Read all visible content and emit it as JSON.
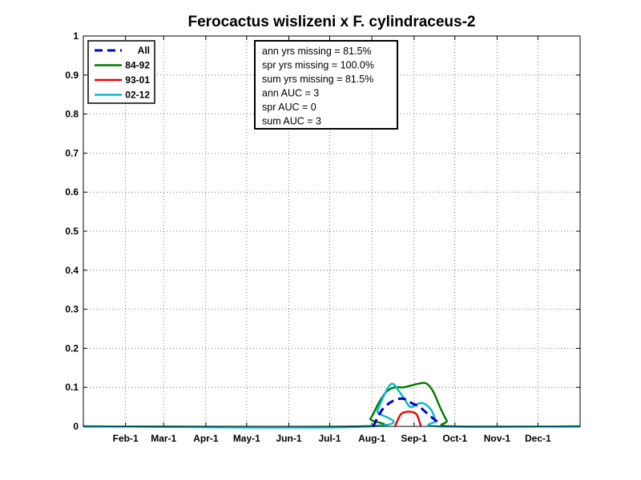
{
  "chart_data": {
    "type": "line",
    "title": "Ferocactus wislizeni x F. cylindraceus-2",
    "xlabel": "",
    "ylabel": "",
    "x_unit": "day_of_year",
    "xlim": [
      1,
      366
    ],
    "ylim": [
      0,
      1
    ],
    "grid": true,
    "legend_position": "top-left",
    "x_ticks": [
      {
        "value": 32,
        "label": "Feb-1"
      },
      {
        "value": 60,
        "label": "Mar-1"
      },
      {
        "value": 91,
        "label": "Apr-1"
      },
      {
        "value": 121,
        "label": "May-1"
      },
      {
        "value": 152,
        "label": "Jun-1"
      },
      {
        "value": 182,
        "label": "Jul-1"
      },
      {
        "value": 213,
        "label": "Aug-1"
      },
      {
        "value": 244,
        "label": "Sep-1"
      },
      {
        "value": 274,
        "label": "Oct-1"
      },
      {
        "value": 305,
        "label": "Nov-1"
      },
      {
        "value": 335,
        "label": "Dec-1"
      }
    ],
    "y_ticks": [
      {
        "value": 0,
        "label": "0"
      },
      {
        "value": 0.1,
        "label": "0.1"
      },
      {
        "value": 0.2,
        "label": "0.2"
      },
      {
        "value": 0.3,
        "label": "0.3"
      },
      {
        "value": 0.4,
        "label": "0.4"
      },
      {
        "value": 0.5,
        "label": "0.5"
      },
      {
        "value": 0.6,
        "label": "0.6"
      },
      {
        "value": 0.7,
        "label": "0.7"
      },
      {
        "value": 0.8,
        "label": "0.8"
      },
      {
        "value": 0.9,
        "label": "0.9"
      },
      {
        "value": 1,
        "label": "1"
      }
    ],
    "series": [
      {
        "name": "All",
        "color": "#0000cc",
        "dash": true,
        "points": [
          [
            214,
            0.0
          ],
          [
            220,
            0.04
          ],
          [
            226,
            0.06
          ],
          [
            232,
            0.07
          ],
          [
            237,
            0.07
          ],
          [
            242,
            0.06
          ],
          [
            248,
            0.05
          ],
          [
            253,
            0.035
          ],
          [
            260,
            0.015
          ],
          [
            264,
            0.01
          ]
        ]
      },
      {
        "name": "84-92",
        "color": "#007700",
        "dash": false,
        "points": [
          [
            1,
            0
          ],
          [
            205,
            0
          ],
          [
            212,
            0.02
          ],
          [
            218,
            0.06
          ],
          [
            224,
            0.09
          ],
          [
            230,
            0.1
          ],
          [
            236,
            0.1
          ],
          [
            242,
            0.105
          ],
          [
            248,
            0.11
          ],
          [
            253,
            0.11
          ],
          [
            258,
            0.09
          ],
          [
            263,
            0.05
          ],
          [
            268,
            0.015
          ],
          [
            272,
            0.0
          ],
          [
            366,
            0.0
          ]
        ]
      },
      {
        "name": "93-01",
        "color": "#ee0000",
        "dash": false,
        "points": [
          [
            230,
            0.0
          ],
          [
            234,
            0.03
          ],
          [
            238,
            0.037
          ],
          [
            242,
            0.037
          ],
          [
            246,
            0.03
          ],
          [
            249,
            0.0
          ]
        ]
      },
      {
        "name": "02-12",
        "color": "#00bbcc",
        "dash": false,
        "points": [
          [
            1,
            0
          ],
          [
            212,
            0
          ],
          [
            217,
            0.04
          ],
          [
            222,
            0.08
          ],
          [
            226,
            0.105
          ],
          [
            229,
            0.108
          ],
          [
            233,
            0.09
          ],
          [
            237,
            0.07
          ],
          [
            241,
            0.05
          ],
          [
            245,
            0.055
          ],
          [
            249,
            0.06
          ],
          [
            253,
            0.055
          ],
          [
            257,
            0.04
          ],
          [
            260,
            0.015
          ],
          [
            263,
            0.0
          ],
          [
            366,
            0.0
          ]
        ]
      }
    ],
    "annotations": [
      "ann yrs missing = 81.5%",
      "spr yrs missing = 100.0%",
      "sum yrs missing = 81.5%",
      "ann AUC = 3",
      "spr AUC = 0",
      "sum AUC = 3"
    ]
  }
}
